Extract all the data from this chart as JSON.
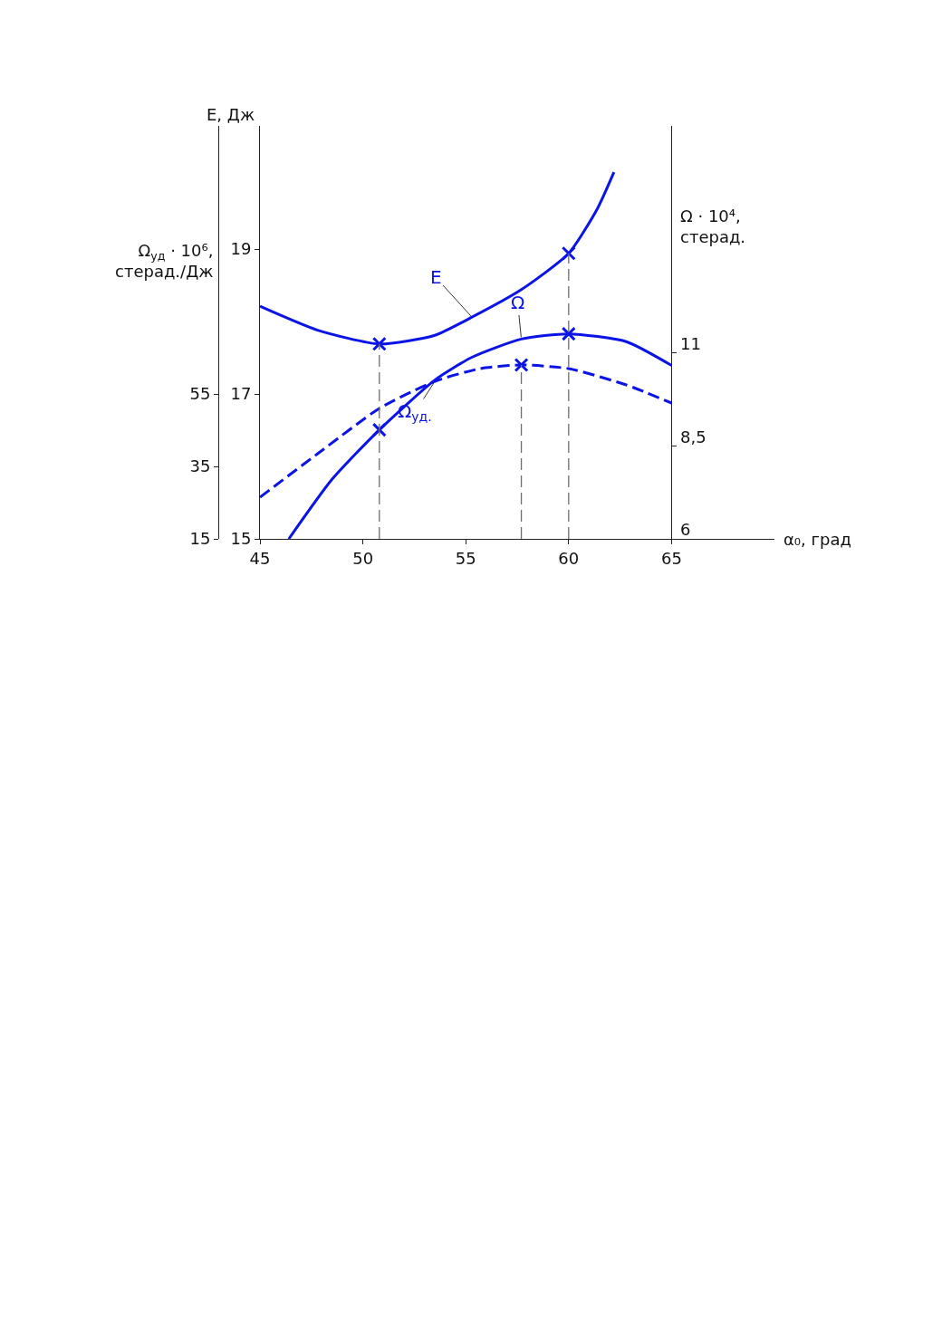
{
  "chart_data": {
    "type": "line",
    "xlabel": "α₀, град",
    "ylabel": "E, Дж",
    "y2label": "Ω$_{уд}$ · 10⁶,\nстерад./Дж",
    "y3label": "Ω · 10⁴,\nстерад.",
    "xlim": [
      45,
      70
    ],
    "xticks": [
      45,
      50,
      55,
      60,
      65
    ],
    "ylim": [
      15,
      20.7
    ],
    "yticks": [
      15,
      17,
      19
    ],
    "y2lim": [
      15,
      129
    ],
    "y2ticks": [
      15,
      35,
      55
    ],
    "y3lim": [
      6,
      17.1
    ],
    "y3ticks": [
      6,
      {
        "value": 8.5,
        "label": "8,5"
      },
      11
    ],
    "series": [
      {
        "name": "E",
        "color": "#0a14e6",
        "axis": "y",
        "line_style": "solid",
        "x": [
          45,
          47.8,
          50.8,
          53.5,
          55.3,
          57.7,
          60,
          61.4,
          62.2
        ],
        "values": [
          18.21,
          17.88,
          17.69,
          17.81,
          18.06,
          18.44,
          18.94,
          19.56,
          20.06
        ]
      },
      {
        "name": "Ω",
        "color": "#0a14e6",
        "axis": "y3",
        "line_style": "solid",
        "x": [
          46.4,
          48.5,
          50.8,
          53.5,
          55.3,
          57.7,
          60,
          62.8,
          65
        ],
        "values": [
          6.0,
          7.6,
          8.93,
          10.27,
          10.88,
          11.37,
          11.51,
          11.3,
          10.66
        ]
      },
      {
        "name": "Ω$_{уд.}$",
        "color": "#0a14e6",
        "axis": "y2",
        "line_style": "dashed",
        "x": [
          45,
          47.8,
          50.8,
          53.5,
          55.7,
          57.7,
          60,
          62.8,
          65
        ],
        "values": [
          26.5,
          38.5,
          51,
          58.5,
          62,
          63,
          62,
          57.5,
          52.5
        ]
      },
      {
        "type": "scatter",
        "color": "#0a14e6",
        "axis": "y",
        "marker": "cross",
        "x": [
          50.8,
          60
        ],
        "values": [
          17.69,
          18.94
        ]
      },
      {
        "type": "scatter",
        "color": "#0a14e6",
        "axis": "y3",
        "marker": "cross",
        "x": [
          50.8,
          60
        ],
        "values": [
          8.93,
          11.51
        ]
      },
      {
        "type": "scatter",
        "color": "#0a14e6",
        "axis": "y2",
        "marker": "cross",
        "x": [
          57.7
        ],
        "values": [
          63
        ]
      }
    ],
    "ref_lines": [
      {
        "axis": "x",
        "value": 50.8,
        "color": "#6e6e6e",
        "line_style": "dashed"
      },
      {
        "axis": "x",
        "value": 57.7,
        "color": "#6e6e6e",
        "line_style": "dashed"
      },
      {
        "axis": "x",
        "value": 60,
        "color": "#6e6e6e",
        "line_style": "dashed"
      }
    ]
  }
}
